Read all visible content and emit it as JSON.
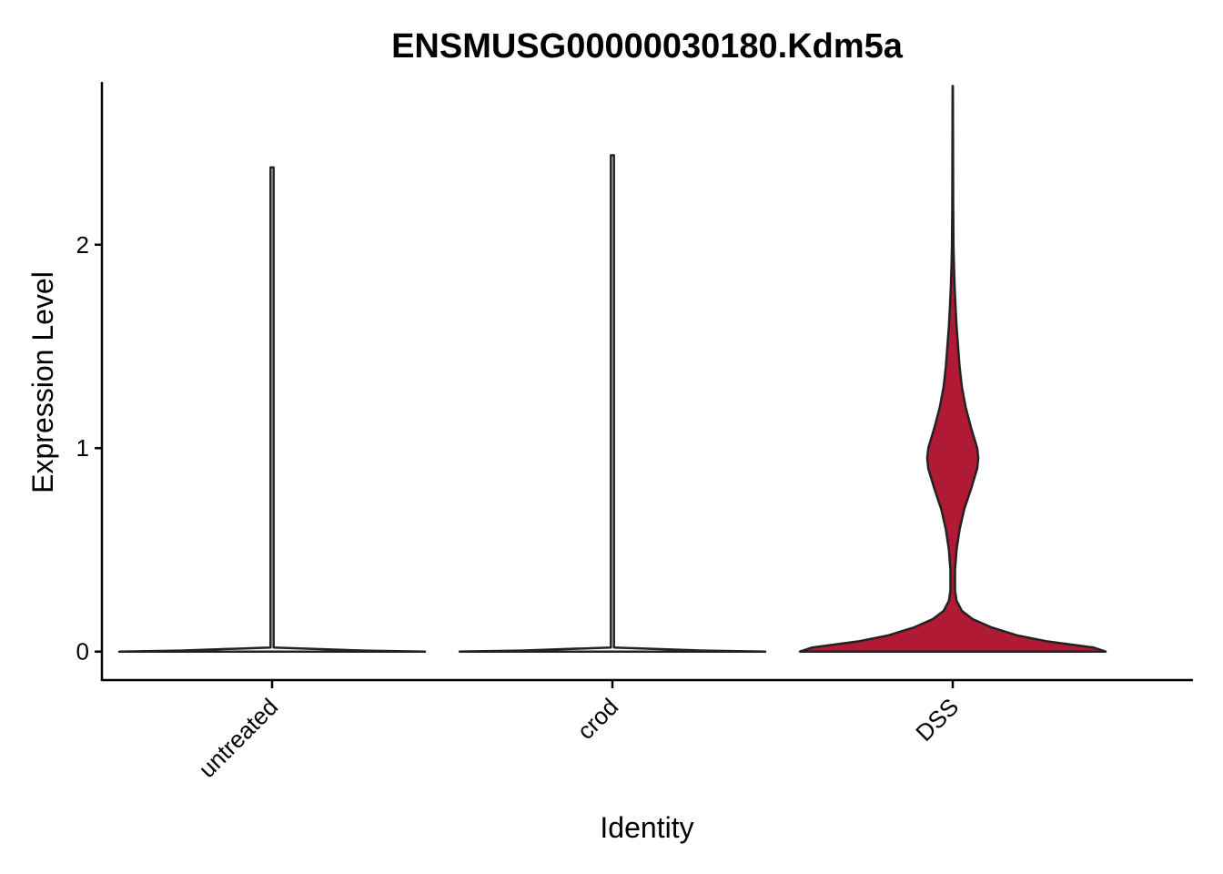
{
  "chart_data": {
    "type": "violin",
    "title": "ENSMUSG00000030180.Kdm5a",
    "xlabel": "Identity",
    "ylabel": "Expression Level",
    "ylim": [
      -0.14,
      2.8
    ],
    "yticks": [
      0,
      1,
      2
    ],
    "grid": false,
    "legend": "none",
    "categories": [
      "untreated",
      "crod",
      "DSS"
    ],
    "series": [
      {
        "category": "untreated",
        "color": "#ffffff",
        "max": 2.38,
        "density": [
          [
            0,
            1.0
          ],
          [
            0.005,
            0.6
          ],
          [
            0.02,
            0.01
          ],
          [
            2.38,
            0.01
          ]
        ]
      },
      {
        "category": "crod",
        "color": "#ffffff",
        "max": 2.44,
        "density": [
          [
            0,
            1.0
          ],
          [
            0.005,
            0.6
          ],
          [
            0.02,
            0.01
          ],
          [
            2.44,
            0.01
          ]
        ]
      },
      {
        "category": "DSS",
        "color": "#b11a35",
        "max": 2.78,
        "density": [
          [
            0,
            1.0
          ],
          [
            0.02,
            0.92
          ],
          [
            0.05,
            0.62
          ],
          [
            0.08,
            0.42
          ],
          [
            0.12,
            0.25
          ],
          [
            0.16,
            0.13
          ],
          [
            0.2,
            0.06
          ],
          [
            0.25,
            0.025
          ],
          [
            0.3,
            0.015
          ],
          [
            0.4,
            0.015
          ],
          [
            0.5,
            0.025
          ],
          [
            0.6,
            0.045
          ],
          [
            0.7,
            0.075
          ],
          [
            0.8,
            0.12
          ],
          [
            0.9,
            0.16
          ],
          [
            0.95,
            0.167
          ],
          [
            1.0,
            0.16
          ],
          [
            1.1,
            0.12
          ],
          [
            1.2,
            0.085
          ],
          [
            1.3,
            0.06
          ],
          [
            1.4,
            0.045
          ],
          [
            1.5,
            0.035
          ],
          [
            1.6,
            0.025
          ],
          [
            1.7,
            0.018
          ],
          [
            1.8,
            0.012
          ],
          [
            1.9,
            0.008
          ],
          [
            2.0,
            0.005
          ],
          [
            2.2,
            0.003
          ],
          [
            2.5,
            0.002
          ],
          [
            2.78,
            0.001
          ]
        ]
      }
    ]
  }
}
